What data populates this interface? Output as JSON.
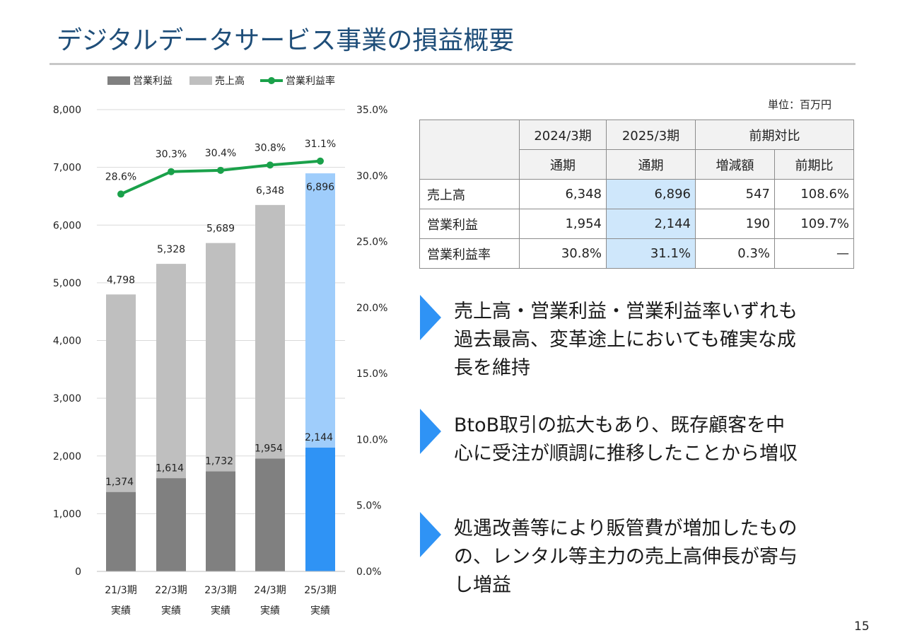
{
  "title": "デジタルデータサービス事業の損益概要",
  "page_number": "15",
  "colors": {
    "title": "#1f4e79",
    "op_income_bar": "#808080",
    "sales_bar": "#bfbfbf",
    "op_income_bar_highlight": "#2f93f5",
    "sales_bar_highlight": "#9fcdfb",
    "margin_line": "#1aa14a",
    "highlight_cell": "#cfe7fb",
    "arrow": "#2f93f5"
  },
  "chart_data": {
    "type": "bar",
    "stacked": false,
    "categories": [
      "21/3期",
      "22/3期",
      "23/3期",
      "24/3期",
      "25/3期"
    ],
    "category_sublabels": [
      "実績",
      "実績",
      "実績",
      "実績",
      "実績"
    ],
    "series": [
      {
        "name": "営業利益",
        "type": "bar",
        "axis": "left",
        "values": [
          1374,
          1614,
          1732,
          1954,
          2144
        ],
        "labels": [
          "1,374",
          "1,614",
          "1,732",
          "1,954",
          "2,144"
        ]
      },
      {
        "name": "売上高",
        "type": "bar",
        "axis": "left",
        "values": [
          4798,
          5328,
          5689,
          6348,
          6896
        ],
        "labels": [
          "4,798",
          "5,328",
          "5,689",
          "6,348",
          "6,896"
        ]
      },
      {
        "name": "営業利益率",
        "type": "line",
        "axis": "right",
        "values": [
          28.6,
          30.3,
          30.4,
          30.8,
          31.1
        ],
        "labels": [
          "28.6%",
          "30.3%",
          "30.4%",
          "30.8%",
          "31.1%"
        ]
      }
    ],
    "ylim": [
      0,
      8000
    ],
    "y_ticks": [
      "0",
      "1,000",
      "2,000",
      "3,000",
      "4,000",
      "5,000",
      "6,000",
      "7,000",
      "8,000"
    ],
    "y2lim": [
      0,
      35
    ],
    "y2_ticks": [
      "0.0%",
      "5.0%",
      "10.0%",
      "15.0%",
      "20.0%",
      "25.0%",
      "30.0%",
      "35.0%"
    ],
    "legend_position": "top",
    "grid": true,
    "highlight_last_category": true
  },
  "unit_label": "単位：百万円",
  "table": {
    "header_top": [
      "2024/3期",
      "2025/3期",
      "前期対比"
    ],
    "header_bottom": [
      "通期",
      "通期",
      "増減額",
      "前期比"
    ],
    "rows": [
      {
        "label": "売上高",
        "prev": "6,348",
        "curr": "6,896",
        "diff": "547",
        "ratio": "108.6%"
      },
      {
        "label": "営業利益",
        "prev": "1,954",
        "curr": "2,144",
        "diff": "190",
        "ratio": "109.7%"
      },
      {
        "label": "営業利益率",
        "prev": "30.8%",
        "curr": "31.1%",
        "diff": "0.3%",
        "ratio": "—"
      }
    ]
  },
  "points": [
    "売上高・営業利益・営業利益率いずれも\n過去最高、変革途上においても確実な成\n長を維持",
    "BtoB取引の拡大もあり、既存顧客を中\n心に受注が順調に推移したことから増収",
    "処遇改善等により販管費が増加したもの\nの、レンタル等主力の売上高伸長が寄与\nし増益"
  ]
}
